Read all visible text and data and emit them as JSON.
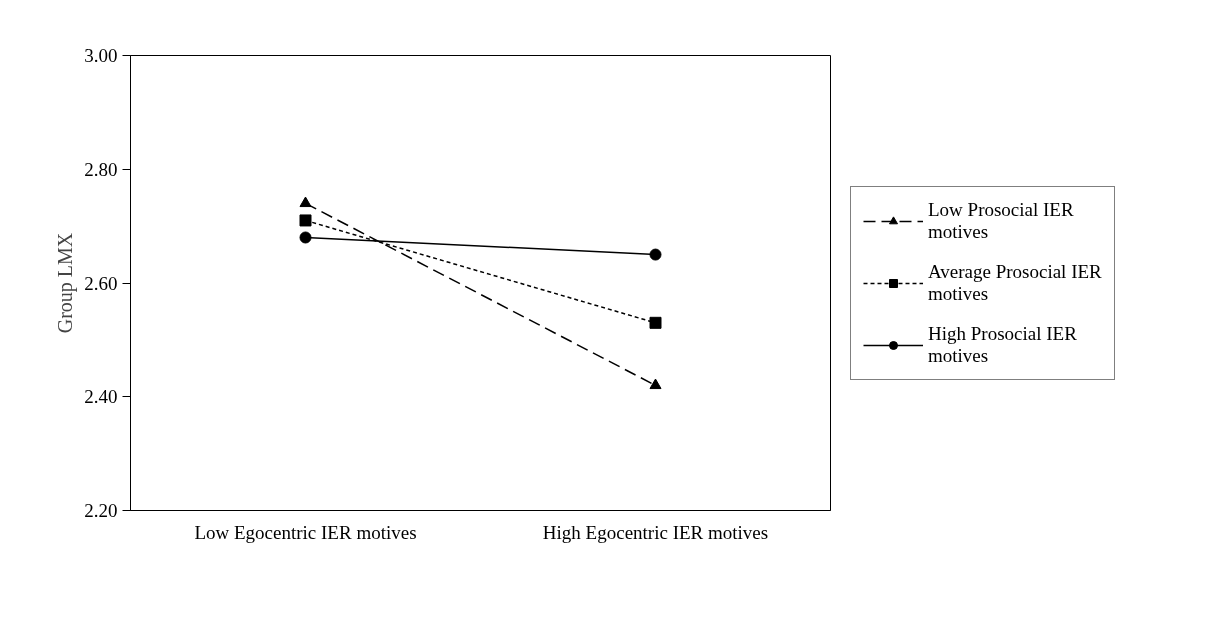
{
  "chart_data": {
    "type": "line",
    "ylabel": "Group LMX",
    "categories": [
      "Low Egocentric IER motives",
      "High Egocentric IER motives"
    ],
    "ylim": [
      2.2,
      3.0
    ],
    "yticks": [
      {
        "value": 2.2,
        "label": "2.20"
      },
      {
        "value": 2.4,
        "label": "2.40"
      },
      {
        "value": 2.6,
        "label": "2.60"
      },
      {
        "value": 2.8,
        "label": "2.80"
      },
      {
        "value": 3.0,
        "label": "3.00"
      }
    ],
    "grid": false,
    "legend": "right",
    "series": [
      {
        "name": "Low Prosocial IER motives",
        "color": "#000000",
        "values": [
          2.74,
          2.42
        ],
        "marker": "triangle",
        "line_style": "dashed"
      },
      {
        "name": "Average Prosocial IER motives",
        "color": "#000000",
        "values": [
          2.71,
          2.53
        ],
        "marker": "square",
        "line_style": "dotted"
      },
      {
        "name": "High Prosocial IER motives",
        "color": "#000000",
        "values": [
          2.68,
          2.65
        ],
        "marker": "circle",
        "line_style": "solid"
      }
    ]
  }
}
